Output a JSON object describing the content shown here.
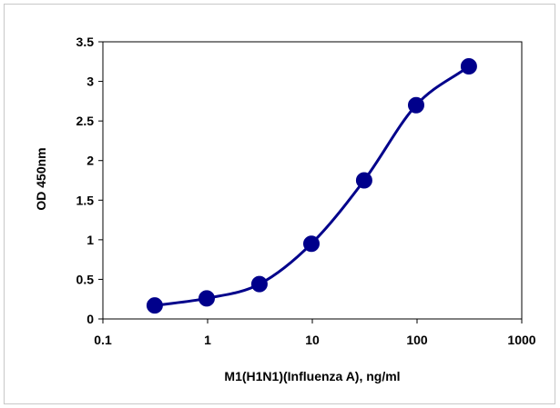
{
  "chart_data": {
    "type": "scatter",
    "title": "",
    "xlabel": "M1(H1N1)(Influenza A), ng/ml",
    "ylabel": "OD 450nm",
    "x_scale": "log",
    "xlim": [
      0.1,
      1000
    ],
    "ylim": [
      0,
      3.5
    ],
    "x_ticks": [
      0.1,
      1,
      10,
      100,
      1000
    ],
    "x_tick_labels": [
      "0.1",
      "1",
      "10",
      "100",
      "1000"
    ],
    "y_ticks": [
      0,
      0.5,
      1,
      1.5,
      2,
      2.5,
      3,
      3.5
    ],
    "y_tick_labels": [
      "0",
      "0.5",
      "1",
      "1.5",
      "2",
      "2.5",
      "3",
      "3.5"
    ],
    "grid": false,
    "legend": "none",
    "series": [
      {
        "x": [
          0.3125,
          0.98,
          3.125,
          9.8,
          31.25,
          98,
          312.5
        ],
        "y": [
          0.17,
          0.26,
          0.44,
          0.95,
          1.75,
          2.7,
          3.19
        ],
        "fit_curve": true
      }
    ],
    "colors": {
      "series": "#00008B",
      "axis": "#000000"
    }
  }
}
